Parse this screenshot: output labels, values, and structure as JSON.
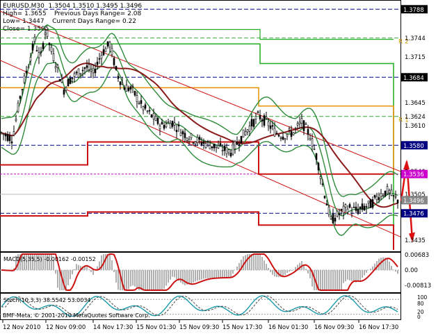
{
  "header": {
    "symbol_line": "EURUSD,M30  1.3504 1.3510 1.3495 1.3496",
    "high_line": "High= 1.3655",
    "prev_range_line": "Previous Days Range= 2.08",
    "low_line": "Low= 1.3447",
    "curr_range_line": "Current Days Range= 0.22",
    "close_line": "Close= 1.3505"
  },
  "main_chart": {
    "price_min": 1.342,
    "price_max": 1.38,
    "price_labels": [
      "1.3788",
      "1.3744",
      "1.3715",
      "1.3684",
      "1.3645",
      "1.3624",
      "1.3610",
      "1.3580",
      "1.3540",
      "1.3536",
      "1.3505",
      "1.3496",
      "1.3476",
      "1.3435"
    ],
    "level_labels": {
      "r2": "R 2",
      "r1": "R 1"
    },
    "colors": {
      "bollinger": "#2e8b3a",
      "ma_fast": "#8b1a1a",
      "channel": "#cc1111",
      "pivot": "#cc1111",
      "support_resist": "#22aa22",
      "orange_level": "#e89000",
      "navy_dash": "#000080",
      "magenta": "#cc00cc",
      "arrow": "#dd1111"
    }
  },
  "macd": {
    "label": "MACD(5,35,5) -0.00162 -0.00152",
    "scale": [
      "0.00683",
      "0.00",
      "-0.00813"
    ]
  },
  "stoch": {
    "label": "Stoch(10,3,3) 38.5542 53.0034",
    "scale": [
      "100",
      "80",
      "20",
      "0"
    ]
  },
  "time_axis": [
    "12 Nov 2010",
    "12 Nov 09:00",
    "14 Nov 17:30",
    "15 Nov 01:30",
    "15 Nov 09:30",
    "15 Nov 17:30",
    "16 Nov 01:30",
    "16 Nov 09:30",
    "16 Nov 17:30"
  ],
  "watermark": "BMF-Meta, © 2001-2010 MetaQuotes Software Corp."
}
